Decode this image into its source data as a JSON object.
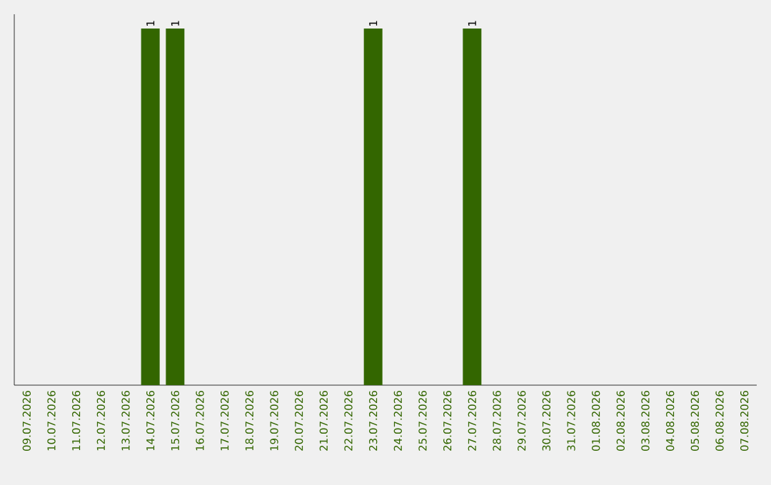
{
  "chart_data": {
    "type": "bar",
    "categories": [
      "09.07.2026",
      "10.07.2026",
      "11.07.2026",
      "12.07.2026",
      "13.07.2026",
      "14.07.2026",
      "15.07.2026",
      "16.07.2026",
      "17.07.2026",
      "18.07.2026",
      "19.07.2026",
      "20.07.2026",
      "21.07.2026",
      "22.07.2026",
      "23.07.2026",
      "24.07.2026",
      "25.07.2026",
      "26.07.2026",
      "27.07.2026",
      "28.07.2026",
      "29.07.2026",
      "30.07.2026",
      "31.07.2026",
      "01.08.2026",
      "02.08.2026",
      "03.08.2026",
      "04.08.2026",
      "05.08.2026",
      "06.08.2026",
      "07.08.2026"
    ],
    "values": [
      0,
      0,
      0,
      0,
      0,
      1,
      1,
      0,
      0,
      0,
      0,
      0,
      0,
      0,
      1,
      0,
      0,
      0,
      1,
      0,
      0,
      0,
      0,
      0,
      0,
      0,
      0,
      0,
      0,
      0
    ],
    "value_labels": [
      null,
      null,
      null,
      null,
      null,
      "1",
      "1",
      null,
      null,
      null,
      null,
      null,
      null,
      null,
      "1",
      null,
      null,
      null,
      "1",
      null,
      null,
      null,
      null,
      null,
      null,
      null,
      null,
      null,
      null,
      null
    ],
    "color": "#336600"
  }
}
